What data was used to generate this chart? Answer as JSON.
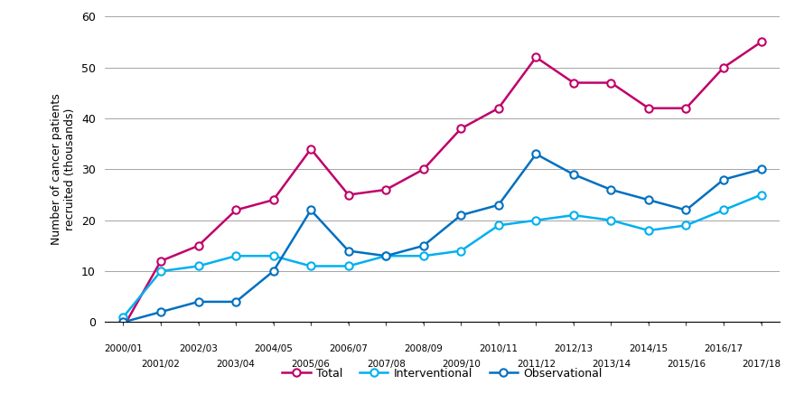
{
  "x_labels_top": [
    "2000/01",
    "2001/02",
    "2002/03",
    "2003/04",
    "2004/05",
    "2005/06",
    "2006/07",
    "2007/08",
    "2008/09",
    "2009/10",
    "2010/11",
    "2011/12",
    "2012/13",
    "2013/14",
    "2014/15",
    "2015/16",
    "2016/17",
    "2017/18"
  ],
  "x_labels_odd": [
    "2000/01",
    "2002/03",
    "2004/05",
    "2006/07",
    "2008/09",
    "2010/11",
    "2012/13",
    "2014/15",
    "2016/17"
  ],
  "x_labels_even": [
    "2001/02",
    "2003/04",
    "2005/06",
    "2007/08",
    "2009/10",
    "2011/12",
    "2013/14",
    "2015/16",
    "2017/18"
  ],
  "total": [
    -1,
    12,
    15,
    22,
    24,
    34,
    25,
    26,
    30,
    38,
    42,
    52,
    47,
    47,
    42,
    42,
    50,
    55
  ],
  "interventional": [
    1,
    10,
    11,
    13,
    13,
    11,
    11,
    13,
    13,
    14,
    19,
    20,
    21,
    20,
    18,
    19,
    22,
    25
  ],
  "observational": [
    0,
    2,
    4,
    4,
    10,
    22,
    14,
    13,
    15,
    21,
    23,
    33,
    29,
    26,
    24,
    22,
    28,
    30
  ],
  "total_color": "#c0006a",
  "interv_color": "#00b0f0",
  "observ_color": "#0070c0",
  "ylim": [
    0,
    60
  ],
  "yticks": [
    0,
    10,
    20,
    30,
    40,
    50,
    60
  ],
  "ylabel": "Number of cancer patients\nrecruited (thousands)",
  "title": "",
  "legend_labels": [
    "Total",
    "Interventional",
    "Observational"
  ]
}
